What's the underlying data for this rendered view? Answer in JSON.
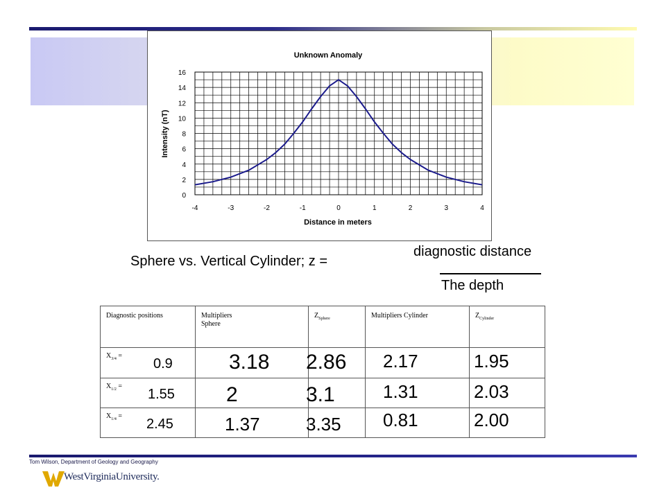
{
  "chart_data": {
    "type": "line",
    "title": "Unknown Anomaly",
    "xlabel": "Distance in meters",
    "ylabel": "Intensity (nT)",
    "xlim": [
      -4,
      4
    ],
    "ylim": [
      0,
      16
    ],
    "xticks": [
      "-4",
      "-3",
      "-2",
      "-1",
      "0",
      "1",
      "2",
      "3",
      "4"
    ],
    "yticks": [
      "0",
      "2",
      "4",
      "6",
      "8",
      "10",
      "12",
      "14",
      "16"
    ],
    "grid": true,
    "x": [
      -4,
      -3.5,
      -3,
      -2.5,
      -2,
      -1.75,
      -1.5,
      -1.25,
      -1,
      -0.75,
      -0.5,
      -0.25,
      0,
      0.25,
      0.5,
      0.75,
      1,
      1.25,
      1.5,
      1.75,
      2,
      2.5,
      3,
      3.5,
      4
    ],
    "series": [
      {
        "values": [
          1.3,
          1.7,
          2.3,
          3.2,
          4.6,
          5.5,
          6.6,
          8.0,
          9.5,
          11.2,
          12.8,
          14.2,
          15.0,
          14.2,
          12.8,
          11.2,
          9.5,
          8.0,
          6.6,
          5.5,
          4.6,
          3.2,
          2.3,
          1.7,
          1.3
        ],
        "color": "#1b1b8c"
      }
    ]
  },
  "formula": {
    "left": "Sphere vs. Vertical Cylinder;   z =",
    "numerator": "diagnostic distance",
    "denominator": "The depth"
  },
  "table": {
    "headers": {
      "col1": "Diagnostic positions",
      "col2_line1": "Multipliers",
      "col2_line2": "Sphere",
      "col3_main": "Z",
      "col3_sub": "Sphere",
      "col4": "Multipliers Cylinder",
      "col5_main": "Z",
      "col5_sub": "Cylinder"
    },
    "rows": [
      {
        "x_main": "X",
        "x_sub": "3/4",
        "x_eq": " =",
        "position": "0.9",
        "mult_sphere": "3.18",
        "z_sphere": "2.86",
        "mult_cyl": "2.17",
        "z_cyl": "1.95"
      },
      {
        "x_main": "X",
        "x_sub": "1/2",
        "x_eq": " =",
        "position": "1.55",
        "mult_sphere": "2",
        "z_sphere": "3.1",
        "mult_cyl": "1.31",
        "z_cyl": "2.03"
      },
      {
        "x_main": "X",
        "x_sub": "1/4",
        "x_eq": " =",
        "position": "2.45",
        "mult_sphere": "1.37",
        "z_sphere": "3.35",
        "mult_cyl": "0.81",
        "z_cyl": "2.00"
      }
    ]
  },
  "footer": {
    "credit": "Tom Wilson, Department of Geology and Geography",
    "logo_text": "WestVirginiaUniversity."
  },
  "colors": {
    "accent_dark": "#1a1a6e",
    "band_left": "#c9c9f4",
    "band_right": "#ffffd2",
    "logo_gold": "#e0a800"
  }
}
